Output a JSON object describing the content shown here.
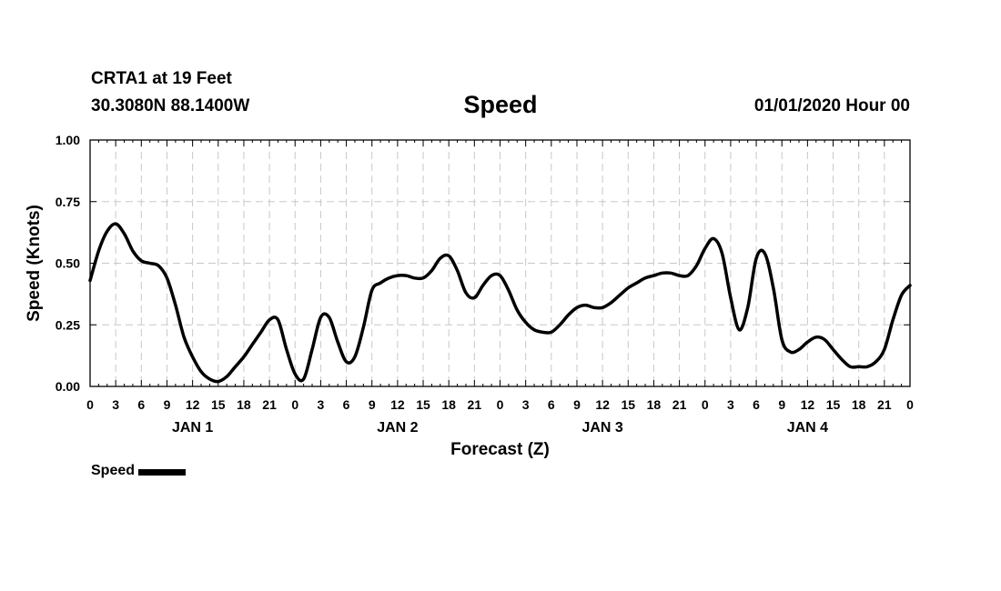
{
  "header": {
    "station": "CRTA1 at 19 Feet",
    "coords": "30.3080N 88.1400W",
    "title": "Speed",
    "datetime": "01/01/2020 Hour 00"
  },
  "legend": {
    "label": "Speed"
  },
  "chart_data": {
    "type": "line",
    "title": "Speed",
    "xlabel": "Forecast (Z)",
    "ylabel": "Speed (Knots)",
    "xlim": [
      0,
      96
    ],
    "ylim": [
      0,
      1.0
    ],
    "yticks": [
      "0.00",
      "0.25",
      "0.50",
      "0.75",
      "1.00"
    ],
    "xtick_step_hours": 3,
    "xtick_labels": [
      "0",
      "3",
      "6",
      "9",
      "12",
      "15",
      "18",
      "21",
      "0",
      "3",
      "6",
      "9",
      "12",
      "15",
      "18",
      "21",
      "0",
      "3",
      "6",
      "9",
      "12",
      "15",
      "18",
      "21",
      "0",
      "3",
      "6",
      "9",
      "12",
      "15",
      "18",
      "21",
      "0"
    ],
    "day_labels": [
      {
        "hour": 12,
        "label": "JAN 1"
      },
      {
        "hour": 36,
        "label": "JAN 2"
      },
      {
        "hour": 60,
        "label": "JAN 3"
      },
      {
        "hour": 84,
        "label": "JAN 4"
      }
    ],
    "grid": true,
    "legend_position": "bottom-left",
    "line_color": "#000000",
    "series": [
      {
        "name": "Speed",
        "x": [
          0,
          1,
          2,
          3,
          4,
          5,
          6,
          7,
          8,
          9,
          10,
          11,
          12,
          13,
          14,
          15,
          16,
          17,
          18,
          19,
          20,
          21,
          22,
          23,
          24,
          25,
          26,
          27,
          28,
          29,
          30,
          31,
          32,
          33,
          34,
          35,
          36,
          37,
          38,
          39,
          40,
          41,
          42,
          43,
          44,
          45,
          46,
          47,
          48,
          49,
          50,
          51,
          52,
          53,
          54,
          55,
          56,
          57,
          58,
          59,
          60,
          61,
          62,
          63,
          64,
          65,
          66,
          67,
          68,
          69,
          70,
          71,
          72,
          73,
          74,
          75,
          76,
          77,
          78,
          79,
          80,
          81,
          82,
          83,
          84,
          85,
          86,
          87,
          88,
          89,
          90,
          91,
          92,
          93,
          94,
          95,
          96
        ],
        "values": [
          0.43,
          0.55,
          0.63,
          0.66,
          0.62,
          0.55,
          0.51,
          0.5,
          0.49,
          0.44,
          0.33,
          0.2,
          0.12,
          0.06,
          0.03,
          0.02,
          0.04,
          0.08,
          0.12,
          0.17,
          0.22,
          0.27,
          0.27,
          0.15,
          0.05,
          0.03,
          0.15,
          0.28,
          0.28,
          0.18,
          0.1,
          0.12,
          0.24,
          0.39,
          0.42,
          0.44,
          0.45,
          0.45,
          0.44,
          0.44,
          0.47,
          0.52,
          0.53,
          0.47,
          0.38,
          0.36,
          0.41,
          0.45,
          0.45,
          0.39,
          0.31,
          0.26,
          0.23,
          0.22,
          0.22,
          0.25,
          0.29,
          0.32,
          0.33,
          0.32,
          0.32,
          0.34,
          0.37,
          0.4,
          0.42,
          0.44,
          0.45,
          0.46,
          0.46,
          0.45,
          0.45,
          0.49,
          0.56,
          0.6,
          0.54,
          0.36,
          0.23,
          0.32,
          0.52,
          0.54,
          0.4,
          0.19,
          0.14,
          0.15,
          0.18,
          0.2,
          0.19,
          0.15,
          0.11,
          0.08,
          0.08,
          0.08,
          0.1,
          0.15,
          0.27,
          0.37,
          0.41
        ]
      }
    ]
  }
}
